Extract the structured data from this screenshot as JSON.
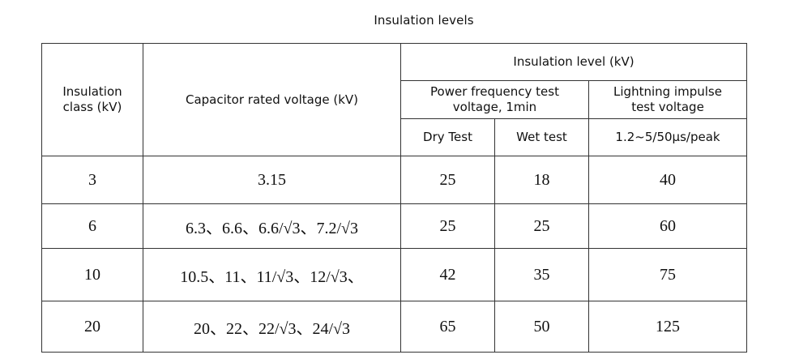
{
  "title": "Insulation levels",
  "table": {
    "headers": {
      "insulation_class": "Insulation class (kV)",
      "rated_voltage": "Capacitor rated voltage (kV)",
      "insulation_level": "Insulation level (kV)",
      "power_frequency": "Power frequency test voltage, 1min",
      "lightning_impulse": "Lightning impulse test voltage",
      "dry_test": "Dry Test",
      "wet_test": "Wet test",
      "impulse_wave": "1.2~5/50μs/peak"
    },
    "rows": [
      {
        "class": "3",
        "rated": "3.15",
        "dry": "25",
        "wet": "18",
        "impulse": "40"
      },
      {
        "class": "6",
        "rated": "6.3、6.6、6.6/√3、7.2/√3",
        "dry": "25",
        "wet": "25",
        "impulse": "60"
      },
      {
        "class": "10",
        "rated": "10.5、11、11/√3、12/√3、",
        "dry": "42",
        "wet": "35",
        "impulse": "75"
      },
      {
        "class": "20",
        "rated": "20、22、22/√3、24/√3",
        "dry": "65",
        "wet": "50",
        "impulse": "125"
      }
    ]
  }
}
